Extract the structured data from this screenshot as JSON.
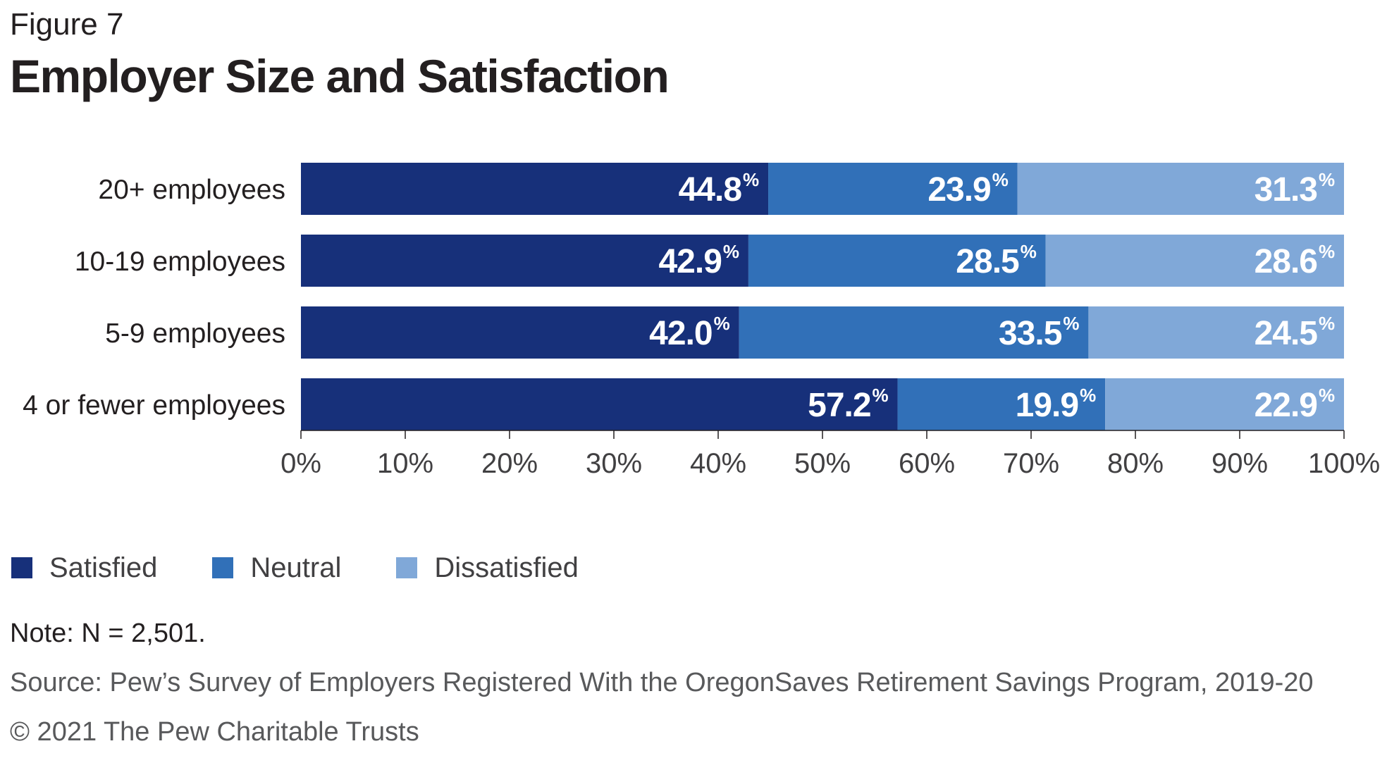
{
  "figure_label": "Figure 7",
  "title": "Employer Size and Satisfaction",
  "chart_data": {
    "type": "bar",
    "orientation": "horizontal",
    "stacked": true,
    "categories": [
      "20+ employees",
      "10-19 employees",
      "5-9 employees",
      "4 or fewer employees"
    ],
    "series": [
      {
        "name": "Satisfied",
        "color": "#17307a",
        "values": [
          44.8,
          42.9,
          42.0,
          57.2
        ],
        "labels": [
          "44.8",
          "42.9",
          "42.0",
          "57.2"
        ]
      },
      {
        "name": "Neutral",
        "color": "#3170b8",
        "values": [
          23.9,
          28.5,
          33.5,
          19.9
        ],
        "labels": [
          "23.9",
          "28.5",
          "33.5",
          "19.9"
        ]
      },
      {
        "name": "Dissatisfied",
        "color": "#80a8d8",
        "values": [
          31.3,
          28.6,
          24.5,
          22.9
        ],
        "labels": [
          "31.3",
          "28.6",
          "24.5",
          "22.9"
        ]
      }
    ],
    "value_suffix": "%",
    "xlim": [
      0,
      100
    ],
    "xticks": [
      "0%",
      "10%",
      "20%",
      "30%",
      "40%",
      "50%",
      "60%",
      "70%",
      "80%",
      "90%",
      "100%"
    ],
    "grid": false,
    "legend_position": "bottom-left"
  },
  "note": "Note: N = 2,501.",
  "source": "Source: Pew’s Survey of Employers Registered With the OregonSaves Retirement Savings Program, 2019-20",
  "copyright": "© 2021 The Pew Charitable Trusts"
}
